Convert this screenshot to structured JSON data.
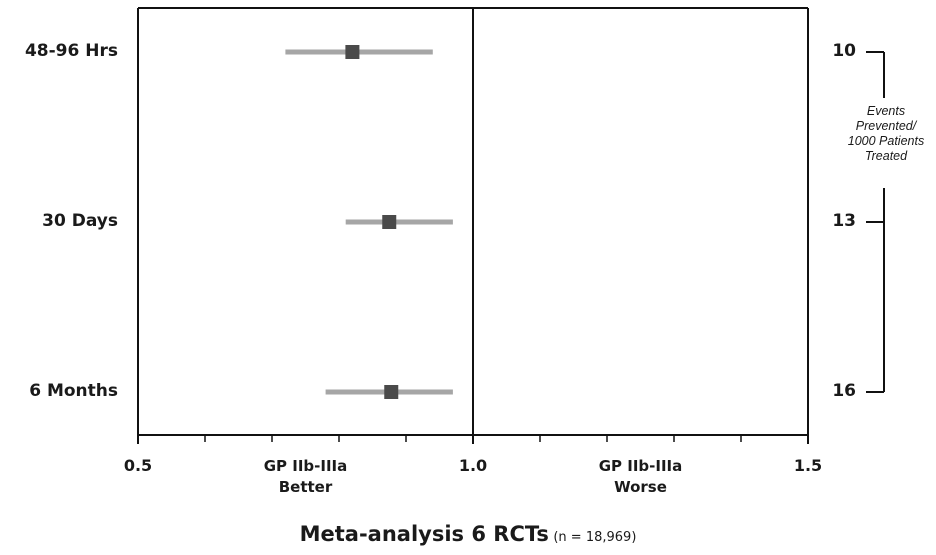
{
  "chart_data": {
    "type": "forest",
    "xlim": [
      0.5,
      1.5
    ],
    "x_ticks": [
      0.5,
      1.0,
      1.5
    ],
    "x_tick_labels": [
      "0.5",
      "1.0",
      "1.5"
    ],
    "minor_ticks": [
      0.6,
      0.7,
      0.8,
      0.9,
      1.1,
      1.2,
      1.3,
      1.4
    ],
    "reference_line": 1.0,
    "region_labels": [
      {
        "text": [
          "GP IIb-IIIa",
          "Better"
        ],
        "x": 0.75
      },
      {
        "text": [
          "GP IIb-IIIa",
          "Worse"
        ],
        "x": 1.25
      }
    ],
    "rows": [
      {
        "label": "48-96 Hrs",
        "estimate": 0.82,
        "ci": [
          0.72,
          0.94
        ],
        "events_prevented": "10"
      },
      {
        "label": "30 Days",
        "estimate": 0.875,
        "ci": [
          0.81,
          0.97
        ],
        "events_prevented": "13"
      },
      {
        "label": "6 Months",
        "estimate": 0.878,
        "ci": [
          0.78,
          0.97
        ],
        "events_prevented": "16"
      }
    ],
    "bracket_caption": [
      "Events",
      "Prevented/",
      "1000 Patients",
      "Treated"
    ],
    "footer_title": "Meta-analysis 6 RCTs",
    "footer_note": "(n = 18,969)",
    "colors": {
      "marker": "#4a4a4a",
      "ci": "#a6a6a6",
      "axis": "#111111"
    }
  }
}
